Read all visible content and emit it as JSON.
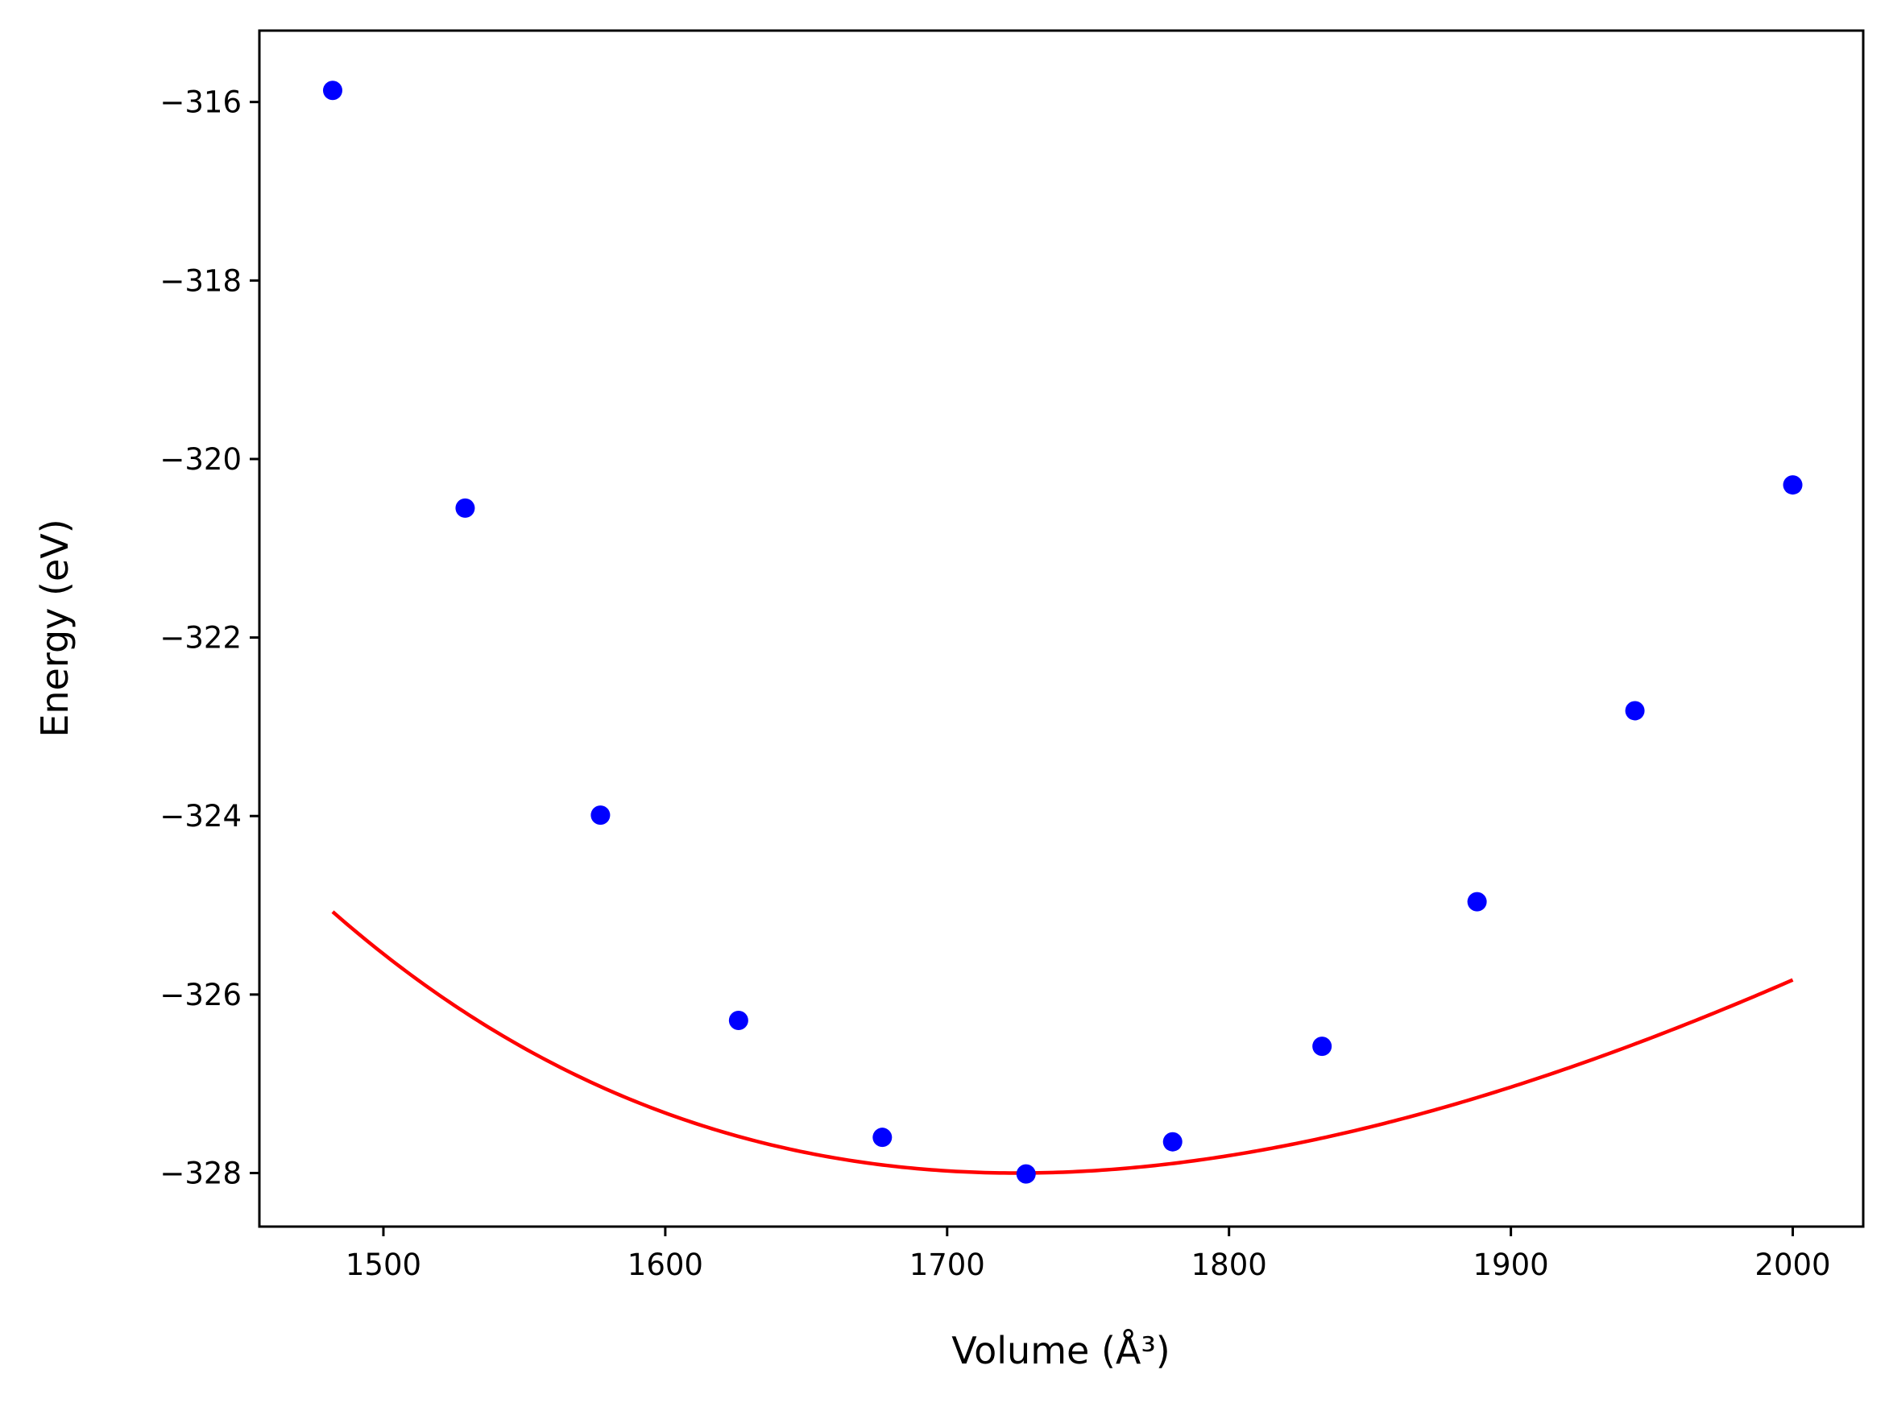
{
  "chart_data": {
    "type": "scatter",
    "title": "",
    "xlabel": "Volume (Å³)",
    "ylabel": "Energy (eV)",
    "xlim": [
      1456,
      2025
    ],
    "ylim": [
      -328.6,
      -315.2
    ],
    "xticks": [
      1500,
      1600,
      1700,
      1800,
      1900,
      2000
    ],
    "yticks": [
      -316,
      -318,
      -320,
      -322,
      -324,
      -326,
      -328
    ],
    "xtick_labels": [
      "1500",
      "1600",
      "1700",
      "1800",
      "1900",
      "2000"
    ],
    "ytick_labels": [
      "−316",
      "−318",
      "−320",
      "−322",
      "−324",
      "−326",
      "−328"
    ],
    "grid": false,
    "series": [
      {
        "kind": "points",
        "color": "#0000ff",
        "x": [
          1482,
          1529,
          1577,
          1626,
          1677,
          1728,
          1780,
          1833,
          1888,
          1944,
          2000
        ],
        "y": [
          -315.87,
          -320.55,
          -323.99,
          -326.29,
          -327.6,
          -328.01,
          -327.65,
          -326.58,
          -324.96,
          -322.82,
          -320.29
        ]
      },
      {
        "kind": "fit-line",
        "color": "#ff0000",
        "equation": "birch-murnaghan",
        "params": {
          "E0": -328.0,
          "V0": 1725,
          "B0": 0.1295,
          "B1": 4.5
        },
        "x_range": [
          1482,
          2000
        ]
      }
    ]
  }
}
